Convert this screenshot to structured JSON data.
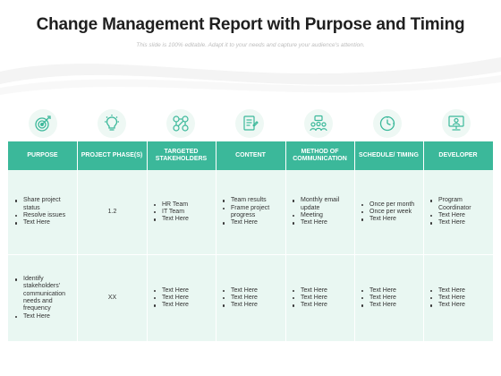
{
  "slide": {
    "title": "Change Management Report with Purpose and Timing",
    "subtitle": "This slide is 100% editable. Adapt it to your needs and capture your audience's attention."
  },
  "colors": {
    "header_bg": "#3bb89a",
    "body_bg": "#e9f7f2",
    "icon_accent": "#3bb89a",
    "icon_circle": "#eef8f4"
  },
  "icons": [
    "target-goal-icon",
    "lightbulb-idea-icon",
    "people-network-icon",
    "document-content-icon",
    "communication-meeting-icon",
    "clock-schedule-icon",
    "developer-computer-icon"
  ],
  "table": {
    "headers": [
      "PURPOSE",
      "PROJECT PHASE(S)",
      "TARGETED STAKEHOLDERS",
      "CONTENT",
      "METHOD OF COMMUNICATION",
      "SCHEDULE/ TIMING",
      "DEVELOPER"
    ],
    "rows": [
      {
        "purpose": [
          "Share project status",
          "Resolve issues",
          "Text Here"
        ],
        "phase": "1.2",
        "stakeholders": [
          "HR Team",
          "IT Team",
          "Text Here"
        ],
        "content": [
          "Team results",
          "Frame project progress",
          "Text Here"
        ],
        "method": [
          "Monthly email update",
          "Meeting",
          "Text Here"
        ],
        "schedule": [
          "Once per month",
          "Once per week",
          "Text Here"
        ],
        "developer": [
          "Program Coordinator",
          "Text Here",
          "Text Here"
        ]
      },
      {
        "purpose": [
          "Identify stakeholders' communication needs and frequency",
          "Text Here"
        ],
        "phase": "XX",
        "stakeholders": [
          "Text Here",
          "Text Here",
          "Text Here"
        ],
        "content": [
          "Text Here",
          "Text Here",
          "Text Here"
        ],
        "method": [
          "Text Here",
          "Text Here",
          "Text Here"
        ],
        "schedule": [
          "Text Here",
          "Text Here",
          "Text Here"
        ],
        "developer": [
          "Text Here",
          "Text Here",
          "Text Here"
        ]
      }
    ]
  }
}
